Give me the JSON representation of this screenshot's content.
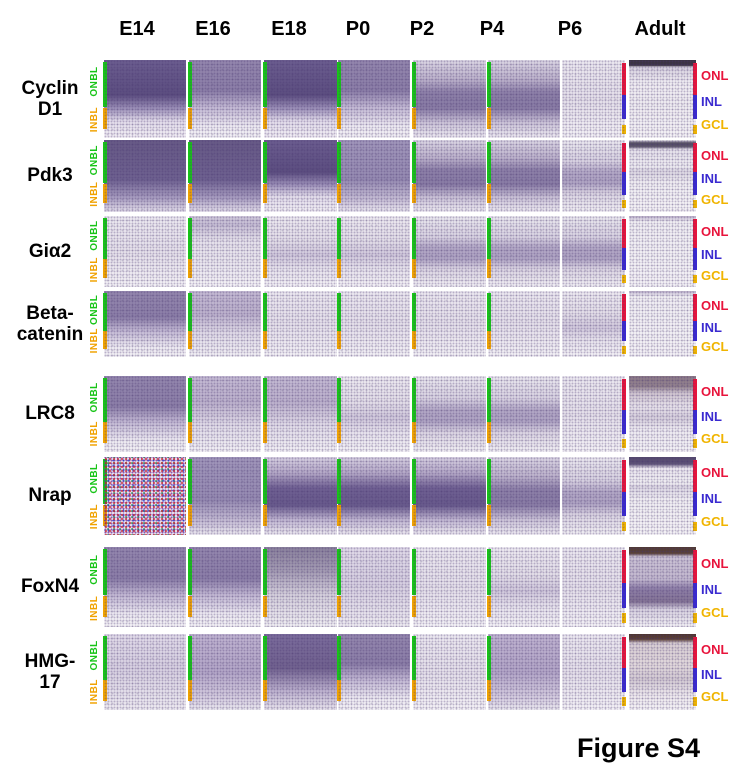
{
  "figure": {
    "caption": "Figure S4"
  },
  "columns": [
    "E14",
    "E16",
    "E18",
    "P0",
    "P2",
    "P4",
    "P6",
    "Adult"
  ],
  "layer_labels": {
    "onbl": {
      "text": "ONBL",
      "color": "#17c417"
    },
    "inbl": {
      "text": "INBL",
      "color": "#f0a200"
    },
    "onl": {
      "text": "ONL",
      "color": "#e8143c"
    },
    "inl": {
      "text": "INL",
      "color": "#3a2ad0"
    },
    "gcl": {
      "text": "GCL",
      "color": "#f0b400"
    }
  },
  "rows": [
    {
      "label": "Cyclin D1",
      "label_lines": [
        "Cyclin",
        "D1"
      ],
      "stain_patterns": [
        "dark-top",
        "med-top",
        "dark-top",
        "med-top",
        "band-mid-med",
        "band-mid-med",
        "pale",
        "adult-cap-pale"
      ]
    },
    {
      "label": "Pdk3",
      "label_lines": [
        "Pdk3"
      ],
      "stain_patterns": [
        "dark-full",
        "dark-full",
        "dark-top",
        "med-full",
        "band-mid-med",
        "band-mid-med",
        "band-mid-light",
        "adult-cap-gray"
      ]
    },
    {
      "label": "Giα2",
      "label_lines": [
        "Giα2"
      ],
      "stain_patterns": [
        "pale",
        "pale-topband",
        "pale-faintband",
        "pale-faintband",
        "band-mid-light",
        "band-mid-light",
        "band-mid-light",
        "adult-thin-pale"
      ]
    },
    {
      "label": "Beta-catenin",
      "label_lines": [
        "Beta-",
        "catenin"
      ],
      "stain_patterns": [
        "med-top",
        "light-top",
        "pale",
        "pale",
        "pale",
        "pale",
        "pale-faintband",
        "adult-thin-pale"
      ]
    },
    {
      "label": "LRC8",
      "label_lines": [
        "LRC8"
      ],
      "stain_patterns": [
        "med-top",
        "light-top",
        "light-top",
        "pale-faintband",
        "band-mid-light",
        "band-mid-light",
        "pale",
        "adult-cap-mauve"
      ]
    },
    {
      "label": "Nrap",
      "label_lines": [
        "Nrap"
      ],
      "stain_patterns": [
        "rgb-noise",
        "med-full",
        "band-mid-strong",
        "band-mid-strong",
        "band-mid-strong",
        "band-mid-med",
        "band-mid-light",
        "adult-cap-purple"
      ]
    },
    {
      "label": "FoxN4",
      "label_lines": [
        "FoxN4"
      ],
      "stain_patterns": [
        "med-top",
        "med-top",
        "gray-top",
        "light-spk",
        "pale",
        "pale-faintband",
        "pale",
        "adult-cap-inl"
      ]
    },
    {
      "label": "HMG-17",
      "label_lines": [
        "HMG-",
        "17"
      ],
      "stain_patterns": [
        "light-spk",
        "med-spk",
        "dark-top-spk",
        "med-top",
        "pale",
        "med-spk",
        "pale",
        "adult-cap-brown"
      ]
    }
  ]
}
